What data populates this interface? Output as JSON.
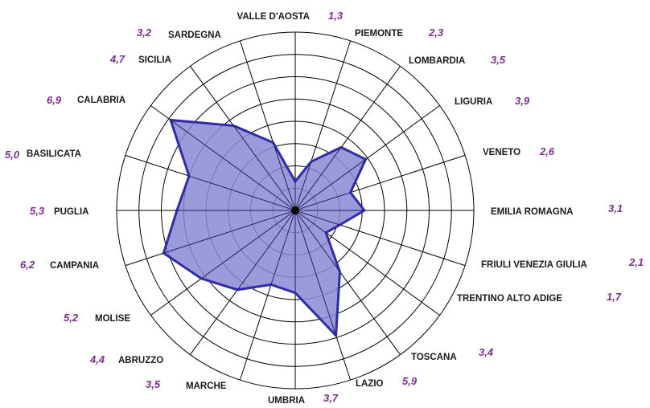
{
  "chart_data": {
    "type": "radar",
    "title": "",
    "scale": {
      "min": 0,
      "max": 8,
      "rings": 8
    },
    "grid": true,
    "legend": "none",
    "colors": {
      "fill": "#8a8ad6",
      "stroke": "#2f2ca6",
      "grid": "#000000",
      "value_text": "#7a2f8c"
    },
    "categories": [
      "VALLE D'AOSTA",
      "PIEMONTE",
      "LOMBARDIA",
      "LIGURIA",
      "VENETO",
      "EMILIA ROMAGNA",
      "FRIULI VENEZIA GIULIA",
      "TRENTINO ALTO ADIGE",
      "TOSCANA",
      "LAZIO",
      "UMBRIA",
      "MARCHE",
      "ABRUZZO",
      "MOLISE",
      "CAMPANIA",
      "PUGLIA",
      "BASILICATA",
      "CALABRIA",
      "SICILIA",
      "SARDEGNA"
    ],
    "values": [
      1.3,
      2.3,
      3.5,
      3.9,
      2.6,
      3.1,
      2.1,
      1.7,
      3.4,
      5.9,
      3.7,
      3.5,
      4.4,
      5.2,
      6.2,
      5.3,
      5.0,
      6.9,
      4.7,
      3.2
    ],
    "value_labels": [
      "1,3",
      "2,3",
      "3,5",
      "3,9",
      "2,6",
      "3,1",
      "2,1",
      "1,7",
      "3,4",
      "5,9",
      "3,7",
      "3,5",
      "4,4",
      "5,2",
      "6,2",
      "5,3",
      "5,0",
      "6,9",
      "4,7",
      "3,2"
    ]
  }
}
